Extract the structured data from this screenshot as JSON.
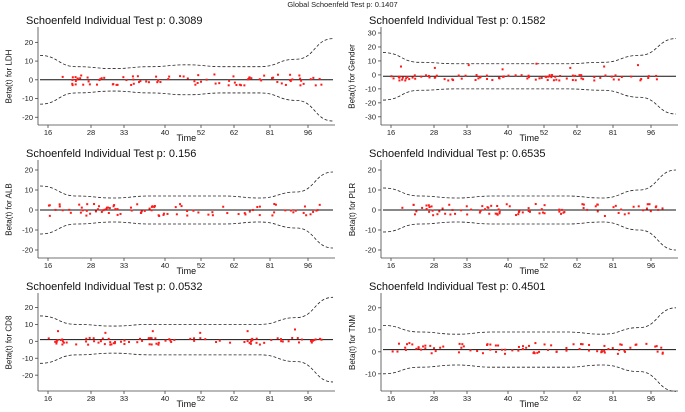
{
  "global_title": "Global Schoenfeld Test p: 0.1407",
  "chart_data": [
    {
      "type": "scatter",
      "title": "Schoenfeld Individual Test p: 0.3089",
      "xlabel": "Time",
      "ylabel": "Beta(t) for LDH",
      "x_ticks": [
        "16",
        "28",
        "33",
        "40",
        "52",
        "62",
        "81",
        "96"
      ],
      "y_ticks": [
        20,
        10,
        0,
        -10,
        -20
      ],
      "ylim": [
        -22,
        25
      ],
      "band": [
        13,
        7,
        6,
        7,
        8,
        7,
        7,
        11,
        22
      ],
      "center": 0,
      "points_offset": 0,
      "spread": [
        -3,
        3
      ],
      "extra": []
    },
    {
      "type": "scatter",
      "title": "Schoenfeld Individual Test p: 0.1582",
      "xlabel": "Time",
      "ylabel": "Beta(t) for Gender",
      "x_ticks": [
        "16",
        "28",
        "33",
        "40",
        "52",
        "62",
        "81",
        "96"
      ],
      "y_ticks": [
        30,
        20,
        10,
        0,
        -10,
        -20,
        -30
      ],
      "ylim": [
        -33,
        30
      ],
      "band": [
        17,
        10,
        9,
        9,
        9,
        9,
        10,
        15,
        27
      ],
      "center": -1,
      "points_offset": -1,
      "spread": [
        -3,
        1
      ],
      "extra": [
        6,
        5,
        7,
        4,
        8,
        5,
        6,
        7
      ]
    },
    {
      "type": "scatter",
      "title": "Schoenfeld Individual Test p: 0.156",
      "xlabel": "Time",
      "ylabel": "Beta(t) for ALB",
      "x_ticks": [
        "16",
        "28",
        "33",
        "40",
        "52",
        "62",
        "81",
        "96"
      ],
      "y_ticks": [
        20,
        10,
        0,
        -10,
        -20
      ],
      "ylim": [
        -22,
        22
      ],
      "band": [
        12,
        7,
        6,
        7,
        7,
        7,
        6,
        9,
        19
      ],
      "center": 0,
      "points_offset": 0,
      "spread": [
        -3,
        3
      ],
      "extra": []
    },
    {
      "type": "scatter",
      "title": "Schoenfeld Individual Test p: 0.6535",
      "xlabel": "Time",
      "ylabel": "Beta(t) for PLR",
      "x_ticks": [
        "16",
        "28",
        "33",
        "40",
        "52",
        "62",
        "81",
        "96"
      ],
      "y_ticks": [
        20,
        10,
        0,
        -10,
        -20
      ],
      "ylim": [
        -22,
        22
      ],
      "band": [
        11,
        7,
        6,
        7,
        7,
        7,
        6,
        10,
        20
      ],
      "center": 0,
      "points_offset": 0,
      "spread": [
        -3,
        3
      ],
      "extra": []
    },
    {
      "type": "scatter",
      "title": "Schoenfeld Individual Test p: 0.0532",
      "xlabel": "Time",
      "ylabel": "Beta(t) for CD8",
      "x_ticks": [
        "16",
        "28",
        "33",
        "40",
        "52",
        "62",
        "81",
        "96"
      ],
      "y_ticks": [
        20,
        10,
        0,
        -10,
        -20
      ],
      "ylim": [
        -27,
        25
      ],
      "band": [
        14,
        9,
        8,
        9,
        9,
        9,
        9,
        13,
        25
      ],
      "center": 1,
      "points_offset": 0,
      "spread": [
        -2,
        2
      ],
      "extra": [
        6,
        5,
        6,
        5,
        6,
        7
      ]
    },
    {
      "type": "scatter",
      "title": "Schoenfeld Individual Test p: 0.4501",
      "xlabel": "Time",
      "ylabel": "Beta(t) for TNM",
      "x_ticks": [
        "16",
        "28",
        "33",
        "40",
        "52",
        "62",
        "81",
        "96"
      ],
      "y_ticks": [
        20,
        10,
        0,
        -10
      ],
      "ylim": [
        -16,
        24
      ],
      "band": [
        11,
        8,
        7,
        8,
        8,
        8,
        7,
        10,
        19
      ],
      "center": 1,
      "points_offset": 1,
      "spread": [
        -2,
        3
      ],
      "extra": []
    }
  ]
}
